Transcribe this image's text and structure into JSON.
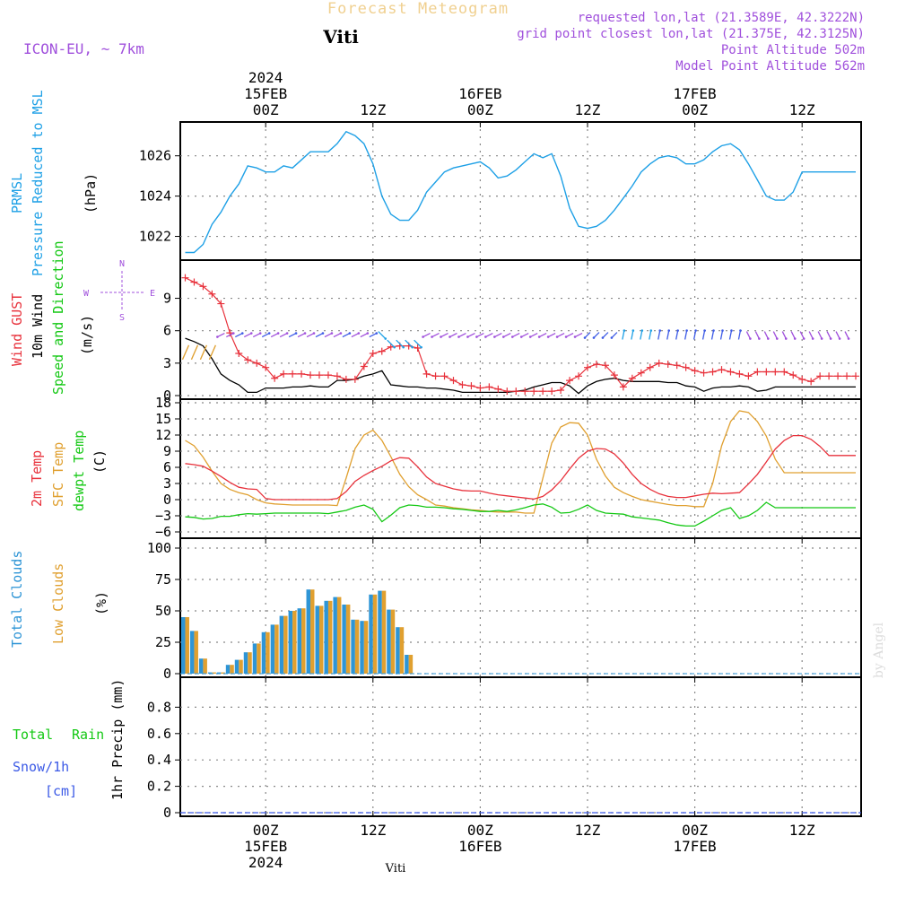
{
  "header": {
    "product": "Forecast Meteogram",
    "station": "Viti",
    "model": "ICON-EU, ~ 7km",
    "requested": "requested lon,lat (21.3589E, 42.3222N)",
    "grid_point": "grid point closest lon,lat (21.375E, 42.3125N)",
    "point_alt": "Point Altitude 502m",
    "model_alt": "Model Point Altitude 562m"
  },
  "footer": {
    "station": "Viti",
    "credit": "by Angel"
  },
  "colors": {
    "pressure": "#1ea0e6",
    "gust": "#e8323c",
    "wind": "#000000",
    "sfc": "#e0a030",
    "t2m": "#e8323c",
    "dew": "#14c814",
    "total_clouds": "#2e95d6",
    "low_clouds": "#e0a030",
    "purple": "#a050dc",
    "rain": "#14c814",
    "snow": "#3c5ae6",
    "grid": "#888888"
  },
  "chart_data": [
    {
      "type": "line",
      "x_unit": "hours since 2024-02-14 15Z",
      "top_axis_ticks": [
        {
          "x": 9,
          "label": "00Z",
          "date": "15FEB",
          "year": "2024"
        },
        {
          "x": 21,
          "label": "12Z"
        },
        {
          "x": 33,
          "label": "00Z",
          "date": "16FEB"
        },
        {
          "x": 45,
          "label": "12Z"
        },
        {
          "x": 57,
          "label": "00Z",
          "date": "17FEB"
        },
        {
          "x": 69,
          "label": "12Z"
        }
      ],
      "ylabel": [
        "PRMSL",
        "Pressure Reduced to MSL",
        "(hPa)"
      ],
      "ylim": [
        1021,
        1027.5
      ],
      "yticks": [
        1022,
        1024,
        1026
      ],
      "series": [
        {
          "name": "PRMSL",
          "x": [
            0,
            1,
            2,
            3,
            4,
            5,
            6,
            7,
            8,
            9,
            10,
            11,
            12,
            13,
            14,
            15,
            16,
            17,
            18,
            19,
            20,
            21,
            22,
            23,
            24,
            25,
            26,
            27,
            28,
            29,
            30,
            31,
            32,
            33,
            34,
            35,
            36,
            37,
            38,
            39,
            40,
            41,
            42,
            43,
            44,
            45,
            46,
            47,
            48,
            49,
            50,
            51,
            52,
            53,
            54,
            55,
            56,
            57,
            58,
            59,
            60,
            61,
            62,
            63,
            64,
            65,
            66,
            67,
            68,
            69,
            70,
            71,
            72,
            73,
            74,
            75
          ],
          "values": [
            1021.2,
            1021.2,
            1021.6,
            1022.6,
            1023.2,
            1024.0,
            1024.6,
            1025.5,
            1025.4,
            1025.2,
            1025.2,
            1025.5,
            1025.4,
            1025.8,
            1026.2,
            1026.2,
            1026.2,
            1026.6,
            1027.2,
            1027.0,
            1026.6,
            1025.6,
            1024.0,
            1023.1,
            1022.8,
            1022.8,
            1023.3,
            1024.2,
            1024.7,
            1025.2,
            1025.4,
            1025.5,
            1025.6,
            1025.7,
            1025.4,
            1024.9,
            1025.0,
            1025.3,
            1025.7,
            1026.1,
            1025.9,
            1026.1,
            1025.0,
            1023.4,
            1022.5,
            1022.4,
            1022.5,
            1022.8,
            1023.3,
            1023.9,
            1024.5,
            1025.2,
            1025.6,
            1025.9,
            1026.0,
            1025.9,
            1025.6,
            1025.6,
            1025.8,
            1026.2,
            1026.5,
            1026.6,
            1026.3,
            1025.6,
            1024.8,
            1024.0,
            1023.8,
            1023.8,
            1024.2,
            1025.2,
            1025.2,
            1025.2,
            1025.2,
            1025.2,
            1025.2,
            1025.2
          ]
        }
      ]
    },
    {
      "type": "line",
      "ylabel": [
        "Wind GUST",
        "10m Wind",
        "Speed and Direction",
        "(m/s)"
      ],
      "compass": [
        "N",
        "S",
        "W",
        "E"
      ],
      "ylim": [
        0,
        12.2
      ],
      "yticks": [
        0,
        3,
        6,
        9
      ],
      "series": [
        {
          "name": "Wind GUST",
          "values": [
            10.9,
            10.5,
            10.1,
            9.4,
            8.5,
            5.8,
            3.9,
            3.3,
            3.0,
            2.6,
            1.6,
            2.0,
            2.0,
            2.0,
            1.9,
            1.9,
            1.9,
            1.8,
            1.5,
            1.5,
            2.7,
            3.9,
            4.1,
            4.5,
            4.6,
            4.6,
            4.4,
            2.0,
            1.8,
            1.8,
            1.4,
            1.0,
            0.9,
            0.7,
            0.8,
            0.6,
            0.4,
            0.4,
            0.4,
            0.4,
            0.4,
            0.4,
            0.5,
            1.4,
            1.8,
            2.6,
            2.9,
            2.8,
            1.9,
            0.8,
            1.6,
            2.1,
            2.6,
            3.0,
            2.9,
            2.8,
            2.6,
            2.3,
            2.1,
            2.2,
            2.4,
            2.2,
            2.0,
            1.8,
            2.2,
            2.2,
            2.2,
            2.2,
            1.9,
            1.5,
            1.3,
            1.8,
            1.8,
            1.8,
            1.8,
            1.8
          ]
        },
        {
          "name": "10m Wind",
          "values": [
            5.3,
            5.0,
            4.6,
            3.4,
            2.0,
            1.4,
            1.0,
            0.3,
            0.3,
            0.7,
            0.7,
            0.7,
            0.8,
            0.8,
            0.9,
            0.8,
            0.8,
            1.4,
            1.4,
            1.5,
            1.8,
            2.0,
            2.3,
            1.0,
            0.9,
            0.8,
            0.8,
            0.7,
            0.7,
            0.6,
            0.5,
            0.3,
            0.3,
            0.3,
            0.3,
            0.3,
            0.3,
            0.4,
            0.5,
            0.8,
            1.0,
            1.2,
            1.2,
            0.9,
            0.2,
            0.9,
            1.3,
            1.5,
            1.6,
            1.4,
            1.3,
            1.3,
            1.3,
            1.3,
            1.2,
            1.2,
            0.9,
            0.8,
            0.4,
            0.7,
            0.8,
            0.8,
            0.9,
            0.8,
            0.4,
            0.5,
            0.8,
            0.8,
            0.8,
            0.8,
            0.8,
            0.8,
            0.8,
            0.8,
            0.8,
            0.8
          ]
        }
      ]
    },
    {
      "type": "line",
      "ylabel": [
        "2m Temp",
        "SFC Temp",
        "dewpt Temp",
        "(C)"
      ],
      "ylim": [
        -6.5,
        18
      ],
      "yticks": [
        -6,
        -3,
        0,
        3,
        6,
        9,
        12,
        15,
        18
      ],
      "series": [
        {
          "name": "2m Temp",
          "values": [
            6.7,
            6.5,
            6.2,
            5.3,
            4.3,
            3.2,
            2.3,
            2.0,
            1.9,
            0.2,
            0.0,
            0.0,
            0.0,
            0.0,
            0.0,
            0.0,
            0.0,
            0.2,
            1.5,
            3.4,
            4.5,
            5.4,
            6.2,
            7.2,
            7.8,
            7.7,
            6.1,
            4.2,
            3.0,
            2.5,
            2.0,
            1.7,
            1.6,
            1.6,
            1.2,
            0.9,
            0.7,
            0.5,
            0.3,
            0.1,
            0.6,
            1.8,
            3.5,
            5.7,
            7.7,
            9.0,
            9.5,
            9.4,
            8.5,
            6.8,
            4.7,
            3.0,
            1.9,
            1.1,
            0.6,
            0.4,
            0.4,
            0.7,
            1.0,
            1.2,
            1.1,
            1.2,
            1.3,
            2.9,
            4.7,
            7.0,
            9.4,
            11.0,
            11.9,
            11.9,
            11.2,
            9.9,
            8.2,
            8.2,
            8.2,
            8.2
          ]
        },
        {
          "name": "SFC Temp",
          "values": [
            11.0,
            10.0,
            7.9,
            5.3,
            3.0,
            1.9,
            1.3,
            0.9,
            0.0,
            -0.6,
            -0.8,
            -0.9,
            -1.0,
            -1.0,
            -1.0,
            -1.0,
            -1.0,
            -1.1,
            4.0,
            9.5,
            12.0,
            12.9,
            11.0,
            8.0,
            4.7,
            2.4,
            0.9,
            0.0,
            -1.0,
            -1.2,
            -1.5,
            -1.7,
            -1.9,
            -2.0,
            -2.2,
            -2.3,
            -2.3,
            -2.3,
            -2.5,
            -2.5,
            4.0,
            10.5,
            13.5,
            14.3,
            14.2,
            12.0,
            7.5,
            4.4,
            2.3,
            1.3,
            0.6,
            0.0,
            -0.3,
            -0.6,
            -0.9,
            -1.1,
            -1.1,
            -1.3,
            -1.3,
            3.0,
            10.0,
            14.5,
            16.5,
            16.2,
            14.5,
            11.8,
            7.5,
            5.0,
            5.0,
            5.0,
            5.0,
            5.0,
            5.0,
            5.0,
            5.0,
            5.0
          ]
        },
        {
          "name": "dewpt Temp",
          "values": [
            -3.2,
            -3.3,
            -3.6,
            -3.5,
            -3.1,
            -3.1,
            -2.8,
            -2.6,
            -2.7,
            -2.6,
            -2.5,
            -2.5,
            -2.5,
            -2.5,
            -2.5,
            -2.5,
            -2.6,
            -2.3,
            -2.0,
            -1.4,
            -1.0,
            -1.8,
            -4.1,
            -2.9,
            -1.5,
            -1.0,
            -1.1,
            -1.4,
            -1.4,
            -1.5,
            -1.7,
            -1.8,
            -2.0,
            -2.2,
            -2.2,
            -2.0,
            -2.2,
            -1.9,
            -1.5,
            -1.0,
            -0.8,
            -1.4,
            -2.5,
            -2.4,
            -1.8,
            -1.0,
            -2.0,
            -2.5,
            -2.6,
            -2.7,
            -3.2,
            -3.4,
            -3.6,
            -3.8,
            -4.3,
            -4.7,
            -4.9,
            -4.9,
            -4.0,
            -3.0,
            -2.0,
            -1.5,
            -3.5,
            -3.0,
            -2.0,
            -0.5,
            -1.5,
            -1.5,
            -1.5,
            -1.5,
            -1.5,
            -1.5,
            -1.5,
            -1.5,
            -1.5,
            -1.5
          ]
        }
      ]
    },
    {
      "type": "bar",
      "ylabel": [
        "Total Clouds",
        "Low Clouds",
        "(%)"
      ],
      "ylim": [
        0,
        105
      ],
      "yticks": [
        0,
        25,
        50,
        75,
        100
      ],
      "series": [
        {
          "name": "Total Clouds",
          "values": [
            45,
            34,
            12,
            1,
            1,
            7,
            11,
            17,
            24,
            33,
            39,
            46,
            50,
            52,
            67,
            54,
            58,
            61,
            55,
            43,
            42,
            63,
            66,
            51,
            37,
            15,
            0,
            0,
            0,
            0,
            0,
            0,
            0,
            0,
            0,
            0,
            0,
            0,
            0,
            0,
            0,
            0,
            0,
            0,
            0,
            0,
            0,
            0,
            0,
            0,
            0,
            0,
            0,
            0,
            0,
            0,
            0,
            0,
            0,
            0,
            0,
            0,
            0,
            0,
            0,
            0,
            0,
            0,
            0,
            0,
            0,
            0,
            0,
            0,
            0,
            0
          ]
        },
        {
          "name": "Low Clouds",
          "values": [
            45,
            34,
            12,
            1,
            1,
            7,
            11,
            17,
            24,
            33,
            39,
            46,
            50,
            52,
            67,
            54,
            58,
            61,
            55,
            43,
            42,
            63,
            66,
            51,
            37,
            15,
            0,
            0,
            0,
            0,
            0,
            0,
            0,
            0,
            0,
            0,
            0,
            0,
            0,
            0,
            0,
            0,
            0,
            0,
            0,
            0,
            0,
            0,
            0,
            0,
            0,
            0,
            0,
            0,
            0,
            0,
            0,
            0,
            0,
            0,
            0,
            0,
            0,
            0,
            0,
            0,
            0,
            0,
            0,
            0,
            0,
            0,
            0,
            0,
            0,
            0
          ]
        }
      ]
    },
    {
      "type": "bar",
      "ylabel": [
        "1hr Precip (mm)"
      ],
      "legend": [
        "Total",
        "Rain",
        "Snow/1h",
        "[cm]"
      ],
      "ylim": [
        0,
        1.0
      ],
      "yticks": [
        0,
        0.2,
        0.4,
        0.6,
        0.8
      ],
      "ytick_labels": [
        "0",
        "0.2",
        "0.4",
        "0.6",
        "0.8"
      ],
      "series": [
        {
          "name": "Total Rain",
          "values": [
            0,
            0,
            0,
            0,
            0,
            0,
            0,
            0,
            0,
            0,
            0,
            0,
            0,
            0,
            0,
            0,
            0,
            0,
            0,
            0,
            0,
            0,
            0,
            0,
            0,
            0,
            0,
            0,
            0,
            0,
            0,
            0,
            0,
            0,
            0,
            0,
            0,
            0,
            0,
            0,
            0,
            0,
            0,
            0,
            0,
            0,
            0,
            0,
            0,
            0,
            0,
            0,
            0,
            0,
            0,
            0,
            0,
            0,
            0,
            0,
            0,
            0,
            0,
            0,
            0,
            0,
            0,
            0,
            0,
            0,
            0,
            0,
            0,
            0,
            0,
            0
          ]
        }
      ],
      "bottom_axis_ticks": [
        {
          "x": 9,
          "label": "00Z",
          "date": "15FEB",
          "year": "2024"
        },
        {
          "x": 21,
          "label": "12Z"
        },
        {
          "x": 33,
          "label": "00Z",
          "date": "16FEB"
        },
        {
          "x": 45,
          "label": "12Z"
        },
        {
          "x": 57,
          "label": "00Z",
          "date": "17FEB"
        },
        {
          "x": 69,
          "label": "12Z"
        }
      ]
    }
  ]
}
